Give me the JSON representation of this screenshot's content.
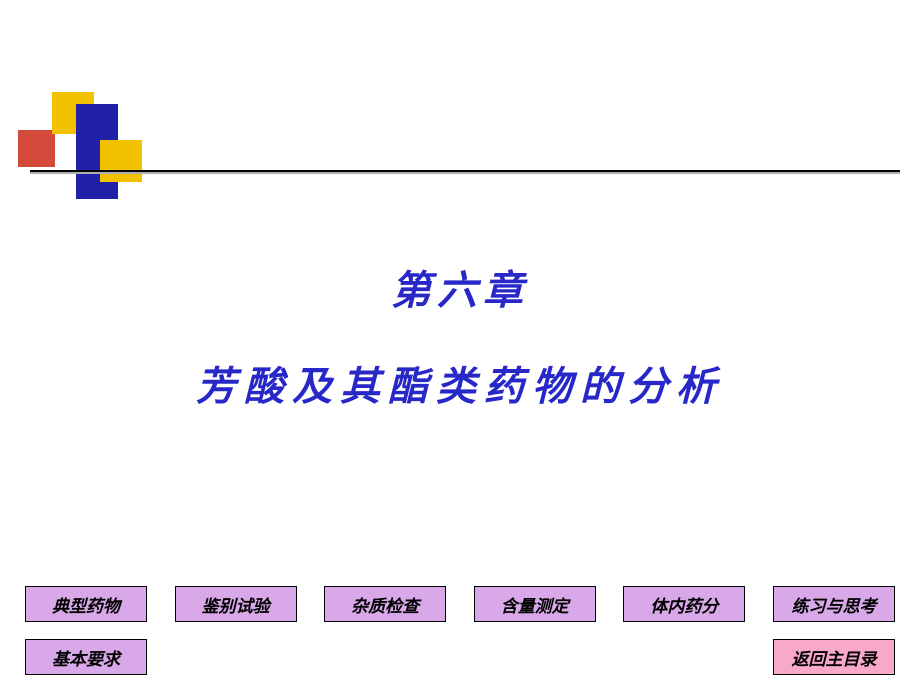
{
  "chapter": {
    "title": "第六章",
    "subtitle": "芳酸及其酯类药物的分析",
    "title_color": "#2828c8",
    "title_fontsize": 40,
    "subtitle_fontsize": 40
  },
  "decoration": {
    "yellow": "#f2c100",
    "blue": "#2020a8",
    "red": "#d44a3a"
  },
  "nav_row1": [
    {
      "label": "典型药物",
      "bg": "#d8a8e8"
    },
    {
      "label": "鉴别试验",
      "bg": "#d8a8e8"
    },
    {
      "label": "杂质检查",
      "bg": "#d8a8e8"
    },
    {
      "label": "含量测定",
      "bg": "#d8a8e8"
    },
    {
      "label": "体内药分",
      "bg": "#d8a8e8"
    },
    {
      "label": "练习与思考",
      "bg": "#d8a8e8"
    }
  ],
  "nav_row2": {
    "left": {
      "label": "基本要求",
      "bg": "#d8a8e8"
    },
    "right": {
      "label": "返回主目录",
      "bg": "#f8a8c8"
    }
  },
  "nav_style": {
    "fontsize": 17,
    "text_color": "#000000"
  }
}
